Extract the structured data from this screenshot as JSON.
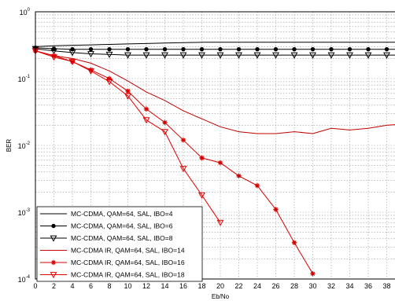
{
  "chart_data": {
    "type": "line",
    "xlabel": "Eb/No",
    "ylabel": "BER",
    "xlim": [
      0,
      40
    ],
    "ylim": [
      0.0001,
      1
    ],
    "yscale": "log",
    "x_ticks": [
      "0",
      "2",
      "4",
      "6",
      "8",
      "10",
      "12",
      "14",
      "16",
      "18",
      "20",
      "22",
      "24",
      "26",
      "28",
      "30",
      "32",
      "34",
      "36",
      "38",
      "40"
    ],
    "y_ticks": [
      {
        "base": "10",
        "exp": "0"
      },
      {
        "base": "10",
        "exp": "-1"
      },
      {
        "base": "10",
        "exp": "-2"
      },
      {
        "base": "10",
        "exp": "-3"
      },
      {
        "base": "10",
        "exp": "-4"
      }
    ],
    "grid": true,
    "legend_position": "bottom-left",
    "series": [
      {
        "name": "MC-CDMA, QAM=64, SAL, IBO=4",
        "color": "#000000",
        "marker": "none",
        "x": [
          0,
          2,
          4,
          6,
          8,
          10,
          12,
          14,
          16,
          18,
          20,
          22,
          24,
          26,
          28,
          30,
          32,
          34,
          36,
          38,
          40
        ],
        "y": [
          0.3,
          0.31,
          0.315,
          0.32,
          0.325,
          0.33,
          0.335,
          0.34,
          0.345,
          0.35,
          0.35,
          0.35,
          0.35,
          0.35,
          0.35,
          0.35,
          0.35,
          0.35,
          0.35,
          0.35,
          0.35
        ]
      },
      {
        "name": "MC-CDMA, QAM=64, SAL, IBO=6",
        "color": "#000000",
        "marker": "dot",
        "x": [
          0,
          2,
          4,
          6,
          8,
          10,
          12,
          14,
          16,
          18,
          20,
          22,
          24,
          26,
          28,
          30,
          32,
          34,
          36,
          38,
          40
        ],
        "y": [
          0.29,
          0.28,
          0.275,
          0.275,
          0.275,
          0.275,
          0.275,
          0.275,
          0.275,
          0.275,
          0.275,
          0.275,
          0.275,
          0.275,
          0.275,
          0.275,
          0.275,
          0.275,
          0.275,
          0.275,
          0.275
        ]
      },
      {
        "name": "MC-CDMA, QAM=64, SAL, IBO=8",
        "color": "#000000",
        "marker": "triangle-down",
        "x": [
          0,
          2,
          4,
          6,
          8,
          10,
          12,
          14,
          16,
          18,
          20,
          22,
          24,
          26,
          28,
          30,
          32,
          34,
          36,
          38,
          40
        ],
        "y": [
          0.28,
          0.26,
          0.245,
          0.235,
          0.23,
          0.225,
          0.225,
          0.225,
          0.225,
          0.225,
          0.225,
          0.225,
          0.225,
          0.225,
          0.225,
          0.225,
          0.225,
          0.225,
          0.225,
          0.225,
          0.225
        ]
      },
      {
        "name": "MC-CDMA IR, QAM=64, SAL, IBO=14",
        "color": "#c00000",
        "marker": "none",
        "x": [
          0,
          2,
          4,
          6,
          8,
          10,
          12,
          14,
          16,
          18,
          20,
          22,
          24,
          26,
          28,
          30,
          32,
          34,
          36,
          38,
          40
        ],
        "y": [
          0.26,
          0.22,
          0.2,
          0.17,
          0.13,
          0.092,
          0.063,
          0.047,
          0.033,
          0.025,
          0.019,
          0.016,
          0.015,
          0.015,
          0.016,
          0.015,
          0.018,
          0.017,
          0.018,
          0.02,
          0.021
        ]
      },
      {
        "name": "MC-CDMA IR, QAM=64, SAL, IBO=16",
        "color": "#d40000",
        "marker": "star",
        "x": [
          0,
          2,
          4,
          6,
          8,
          10,
          12,
          14,
          16,
          18,
          20,
          22,
          24,
          26,
          28,
          30
        ],
        "y": [
          0.26,
          0.22,
          0.18,
          0.135,
          0.1,
          0.065,
          0.035,
          0.022,
          0.012,
          0.0065,
          0.0055,
          0.0035,
          0.0025,
          0.0011,
          0.00035,
          0.00012
        ]
      },
      {
        "name": "MC-CDMA IR, QAM=64, SAL, IBO=18",
        "color": "#e00000",
        "marker": "triangle-down",
        "x": [
          0,
          2,
          4,
          6,
          8,
          10,
          12,
          14,
          16,
          18,
          20
        ],
        "y": [
          0.26,
          0.21,
          0.18,
          0.13,
          0.09,
          0.055,
          0.024,
          0.016,
          0.0045,
          0.0018,
          0.0007
        ]
      }
    ]
  }
}
